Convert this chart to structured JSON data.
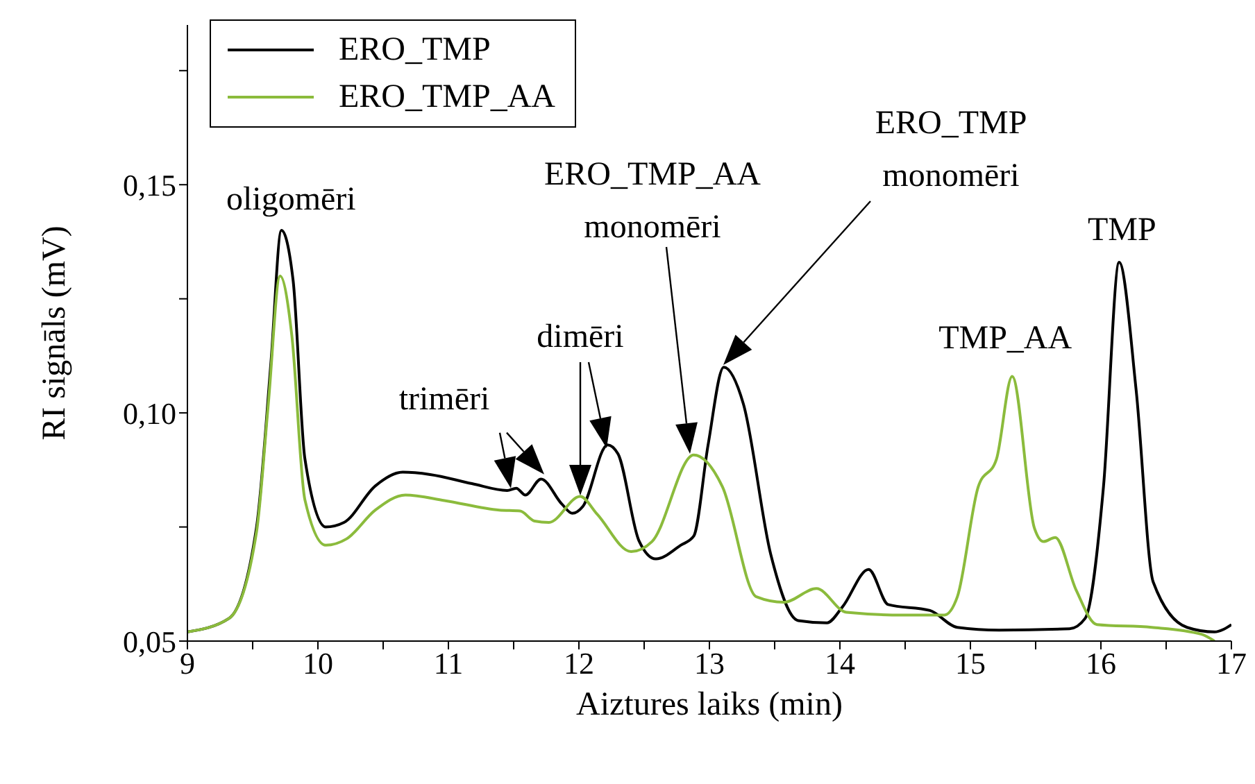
{
  "chart_data": {
    "type": "line",
    "xlabel": "Aiztures laiks (min)",
    "ylabel": "RI signāls (mV)",
    "xlim": [
      9,
      17
    ],
    "ylim": [
      0.05,
      0.185
    ],
    "xticks": [
      9,
      {
        "value": 9.5,
        "label": null
      },
      10,
      {
        "value": 10.5,
        "label": null
      },
      11,
      {
        "value": 11.5,
        "label": null
      },
      12,
      {
        "value": 12.5,
        "label": null
      },
      13,
      {
        "value": 13.5,
        "label": null
      },
      14,
      {
        "value": 14.5,
        "label": null
      },
      15,
      {
        "value": 15.5,
        "label": null
      },
      16,
      {
        "value": 16.5,
        "label": null
      },
      17
    ],
    "yticks": [
      {
        "value": 0.05,
        "label": "0,05"
      },
      {
        "value": 0.075,
        "label": null
      },
      {
        "value": 0.1,
        "label": "0,10"
      },
      {
        "value": 0.125,
        "label": null
      },
      {
        "value": 0.15,
        "label": "0,15"
      },
      {
        "value": 0.175,
        "label": null
      }
    ],
    "grid": false,
    "legend": "top left",
    "marker": "none",
    "line_style": "solid",
    "series": [
      {
        "name": "ERO_TMP",
        "color": "#000000",
        "x": [
          9.0,
          9.32,
          9.53,
          9.64,
          9.72,
          9.81,
          9.9,
          10.06,
          10.2,
          10.44,
          10.65,
          10.86,
          11.18,
          11.45,
          11.52,
          11.59,
          11.71,
          11.87,
          11.95,
          12.03,
          12.22,
          12.3,
          12.46,
          12.59,
          12.78,
          12.88,
          12.99,
          13.11,
          13.26,
          13.47,
          13.68,
          13.9,
          14.02,
          14.22,
          14.37,
          14.69,
          14.9,
          15.22,
          15.76,
          15.88,
          16.02,
          16.14,
          16.27,
          16.4,
          16.66,
          16.87,
          17.0
        ],
        "values": [
          0.052,
          0.055,
          0.075,
          0.111,
          0.14,
          0.129,
          0.09,
          0.075,
          0.076,
          0.084,
          0.087,
          0.0865,
          0.0845,
          0.083,
          0.0835,
          0.082,
          0.0855,
          0.08,
          0.078,
          0.0795,
          0.093,
          0.091,
          0.072,
          0.068,
          0.071,
          0.073,
          0.093,
          0.11,
          0.102,
          0.069,
          0.0545,
          0.054,
          0.0575,
          0.0657,
          0.058,
          0.0567,
          0.053,
          0.0524,
          0.0527,
          0.055,
          0.0839,
          0.133,
          0.105,
          0.063,
          0.053,
          0.052,
          0.0536
        ]
      },
      {
        "name": "ERO_TMP_AA",
        "color": "#8bbb3c",
        "x": [
          9.0,
          9.32,
          9.53,
          9.62,
          9.71,
          9.8,
          9.9,
          10.06,
          10.22,
          10.44,
          10.67,
          10.97,
          11.39,
          11.55,
          11.66,
          11.77,
          12.01,
          12.14,
          12.4,
          12.56,
          12.88,
          13.1,
          13.36,
          13.57,
          13.82,
          14.05,
          14.48,
          14.8,
          14.9,
          15.06,
          15.2,
          15.32,
          15.49,
          15.56,
          15.65,
          15.81,
          15.97,
          16.39,
          16.77,
          16.87
        ],
        "values": [
          0.052,
          0.055,
          0.074,
          0.102,
          0.13,
          0.117,
          0.081,
          0.071,
          0.0724,
          0.0787,
          0.082,
          0.0808,
          0.0787,
          0.0785,
          0.0763,
          0.076,
          0.0817,
          0.0778,
          0.0696,
          0.0718,
          0.0908,
          0.0838,
          0.0597,
          0.0585,
          0.0615,
          0.0563,
          0.0557,
          0.0557,
          0.0597,
          0.0838,
          0.0899,
          0.108,
          0.0748,
          0.0718,
          0.0727,
          0.0612,
          0.0536,
          0.053,
          0.0515,
          0.05
        ]
      }
    ],
    "annotations": [
      {
        "text": "oligomēri",
        "x": 9.72,
        "y": 0.14
      },
      {
        "text": "trimēri",
        "x": 11.5,
        "y": 0.0835
      },
      "dimēri",
      "ERO_TMP_AA\nmonomēri",
      "ERO_TMP\nmonomēri",
      {
        "text": "TMP_AA",
        "x": 15.32,
        "y": 0.108
      },
      {
        "text": "TMP",
        "x": 16.14,
        "y": 0.133
      }
    ]
  }
}
